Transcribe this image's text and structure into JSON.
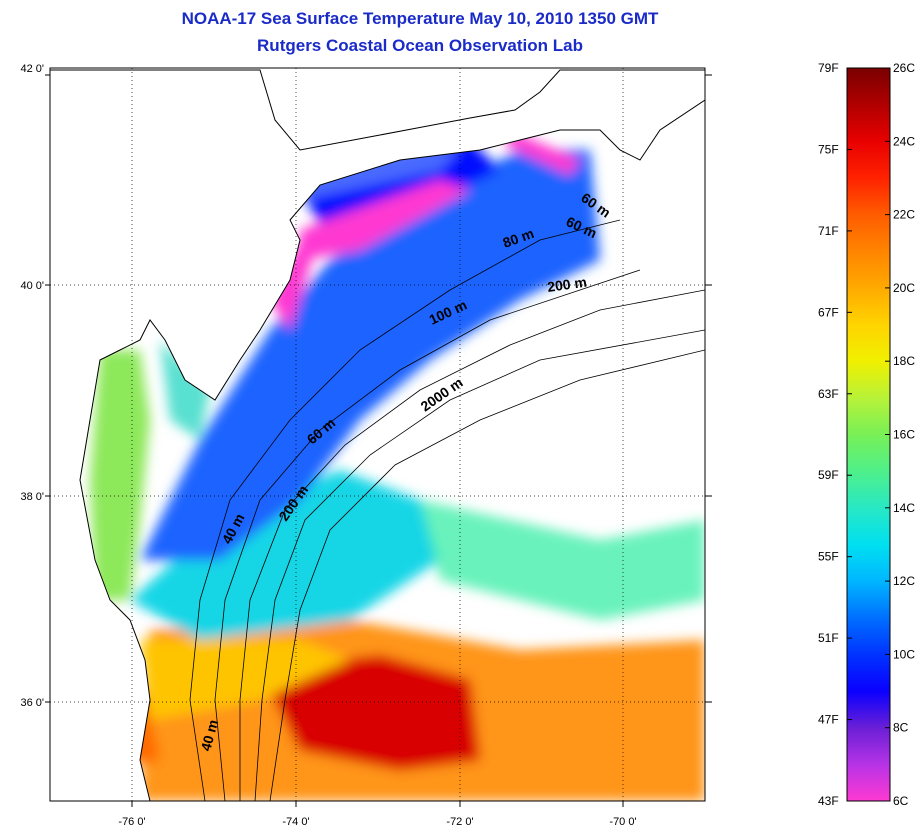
{
  "title": {
    "line1": "NOAA-17 Sea Surface Temperature May 10, 2010 1350 GMT",
    "line2": "Rutgers Coastal Ocean Observation Lab"
  },
  "map": {
    "lat_ticks": [
      "42 0'",
      "40 0'",
      "38 0'",
      "36 0'"
    ],
    "lon_ticks": [
      "-76 0'",
      "-74 0'",
      "-72 0'",
      "-70 0'"
    ],
    "contour_labels": [
      "60 m",
      "60 m",
      "80 m",
      "200 m",
      "100 m",
      "2000 m",
      "60 m",
      "200 m",
      "40 m",
      "40 m"
    ],
    "colors": {
      "land": "#ffffff",
      "cloud": "#ffffff",
      "coast": "#000000"
    }
  },
  "colorbar": {
    "fahrenheit": [
      "79F",
      "75F",
      "71F",
      "67F",
      "63F",
      "59F",
      "55F",
      "51F",
      "47F",
      "43F"
    ],
    "celsius": [
      "26C",
      "24C",
      "22C",
      "20C",
      "18C",
      "16C",
      "14C",
      "12C",
      "10C",
      "8C",
      "6C"
    ],
    "range_c": [
      6,
      26
    ],
    "stops": [
      {
        "c": 6,
        "color": "#ff39d2"
      },
      {
        "c": 7,
        "color": "#b633e6"
      },
      {
        "c": 8,
        "color": "#6a1fd6"
      },
      {
        "c": 9,
        "color": "#0a00ff"
      },
      {
        "c": 10,
        "color": "#0033ff"
      },
      {
        "c": 11,
        "color": "#0070ff"
      },
      {
        "c": 12,
        "color": "#00b6ff"
      },
      {
        "c": 13,
        "color": "#00e0f0"
      },
      {
        "c": 14,
        "color": "#28e8c4"
      },
      {
        "c": 15,
        "color": "#4ff08a"
      },
      {
        "c": 16,
        "color": "#78f056"
      },
      {
        "c": 17,
        "color": "#b8f238"
      },
      {
        "c": 18,
        "color": "#f0f000"
      },
      {
        "c": 19,
        "color": "#ffd400"
      },
      {
        "c": 20,
        "color": "#ffaa00"
      },
      {
        "c": 21,
        "color": "#ff8400"
      },
      {
        "c": 22,
        "color": "#ff5c00"
      },
      {
        "c": 23,
        "color": "#ff2200"
      },
      {
        "c": 24,
        "color": "#e80000"
      },
      {
        "c": 25,
        "color": "#b00000"
      },
      {
        "c": 26,
        "color": "#7a0000"
      }
    ]
  }
}
